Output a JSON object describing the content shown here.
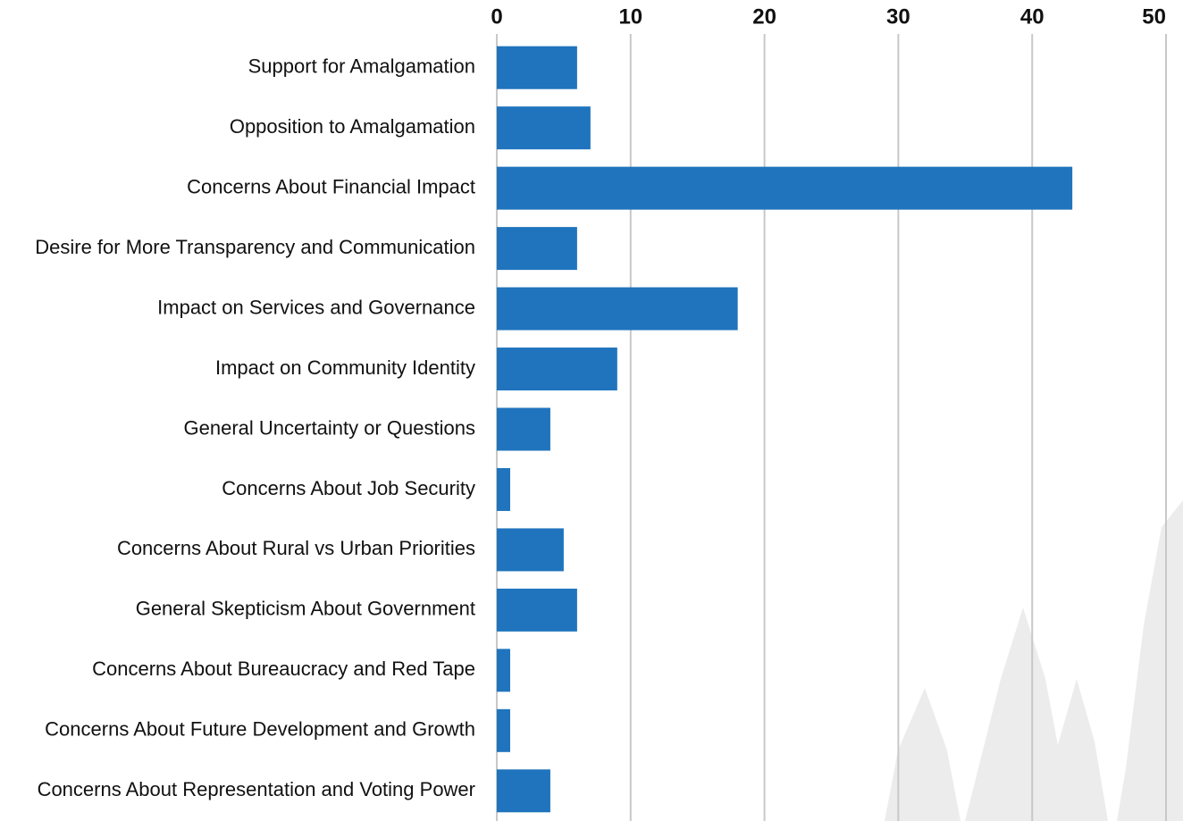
{
  "chart_data": {
    "type": "bar",
    "orientation": "horizontal",
    "categories": [
      "Support for Amalgamation",
      "Opposition to Amalgamation",
      "Concerns About Financial Impact",
      "Desire for More Transparency and Communication",
      "Impact on Services and Governance",
      "Impact on Community Identity",
      "General Uncertainty or Questions",
      "Concerns About Job Security",
      "Concerns About Rural vs Urban Priorities",
      "General Skepticism About Government",
      "Concerns About Bureaucracy and Red Tape",
      "Concerns About Future Development and Growth",
      "Concerns About Representation and Voting Power"
    ],
    "values": [
      6,
      7,
      43,
      6,
      18,
      9,
      4,
      1,
      5,
      6,
      1,
      1,
      4
    ],
    "color": "#1f74bd",
    "xlim": [
      0,
      50
    ],
    "xticks": [
      0,
      10,
      20,
      30,
      40,
      50
    ],
    "grid": true
  }
}
